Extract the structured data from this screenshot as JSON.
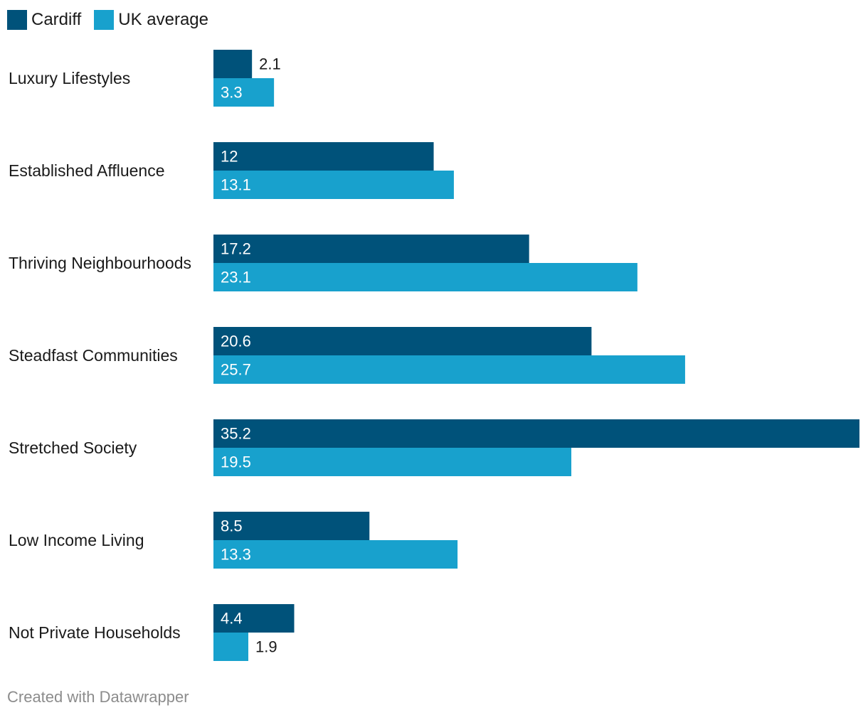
{
  "legend": [
    {
      "label": "Cardiff",
      "color": "#00527a"
    },
    {
      "label": "UK average",
      "color": "#18a1cd"
    }
  ],
  "chart_data": {
    "type": "bar",
    "orientation": "horizontal",
    "categories": [
      "Luxury Lifestyles",
      "Established Affluence",
      "Thriving Neighbourhoods",
      "Steadfast Communities",
      "Stretched Society",
      "Low Income Living",
      "Not Private Households"
    ],
    "series": [
      {
        "name": "Cardiff",
        "color": "#00527a",
        "values": [
          2.1,
          12,
          17.2,
          20.6,
          35.2,
          8.5,
          4.4
        ],
        "labels": [
          "2.1",
          "12",
          "17.2",
          "20.6",
          "35.2",
          "8.5",
          "4.4"
        ]
      },
      {
        "name": "UK average",
        "color": "#18a1cd",
        "values": [
          3.3,
          13.1,
          23.1,
          25.7,
          19.5,
          13.3,
          1.9
        ],
        "labels": [
          "3.3",
          "13.1",
          "23.1",
          "25.7",
          "19.5",
          "13.3",
          "1.9"
        ]
      }
    ],
    "xlim": [
      0,
      35.2
    ],
    "grid": false,
    "legend_position": "top-left",
    "title": "",
    "xlabel": "",
    "ylabel": ""
  },
  "footer": {
    "credit": "Created with Datawrapper"
  }
}
